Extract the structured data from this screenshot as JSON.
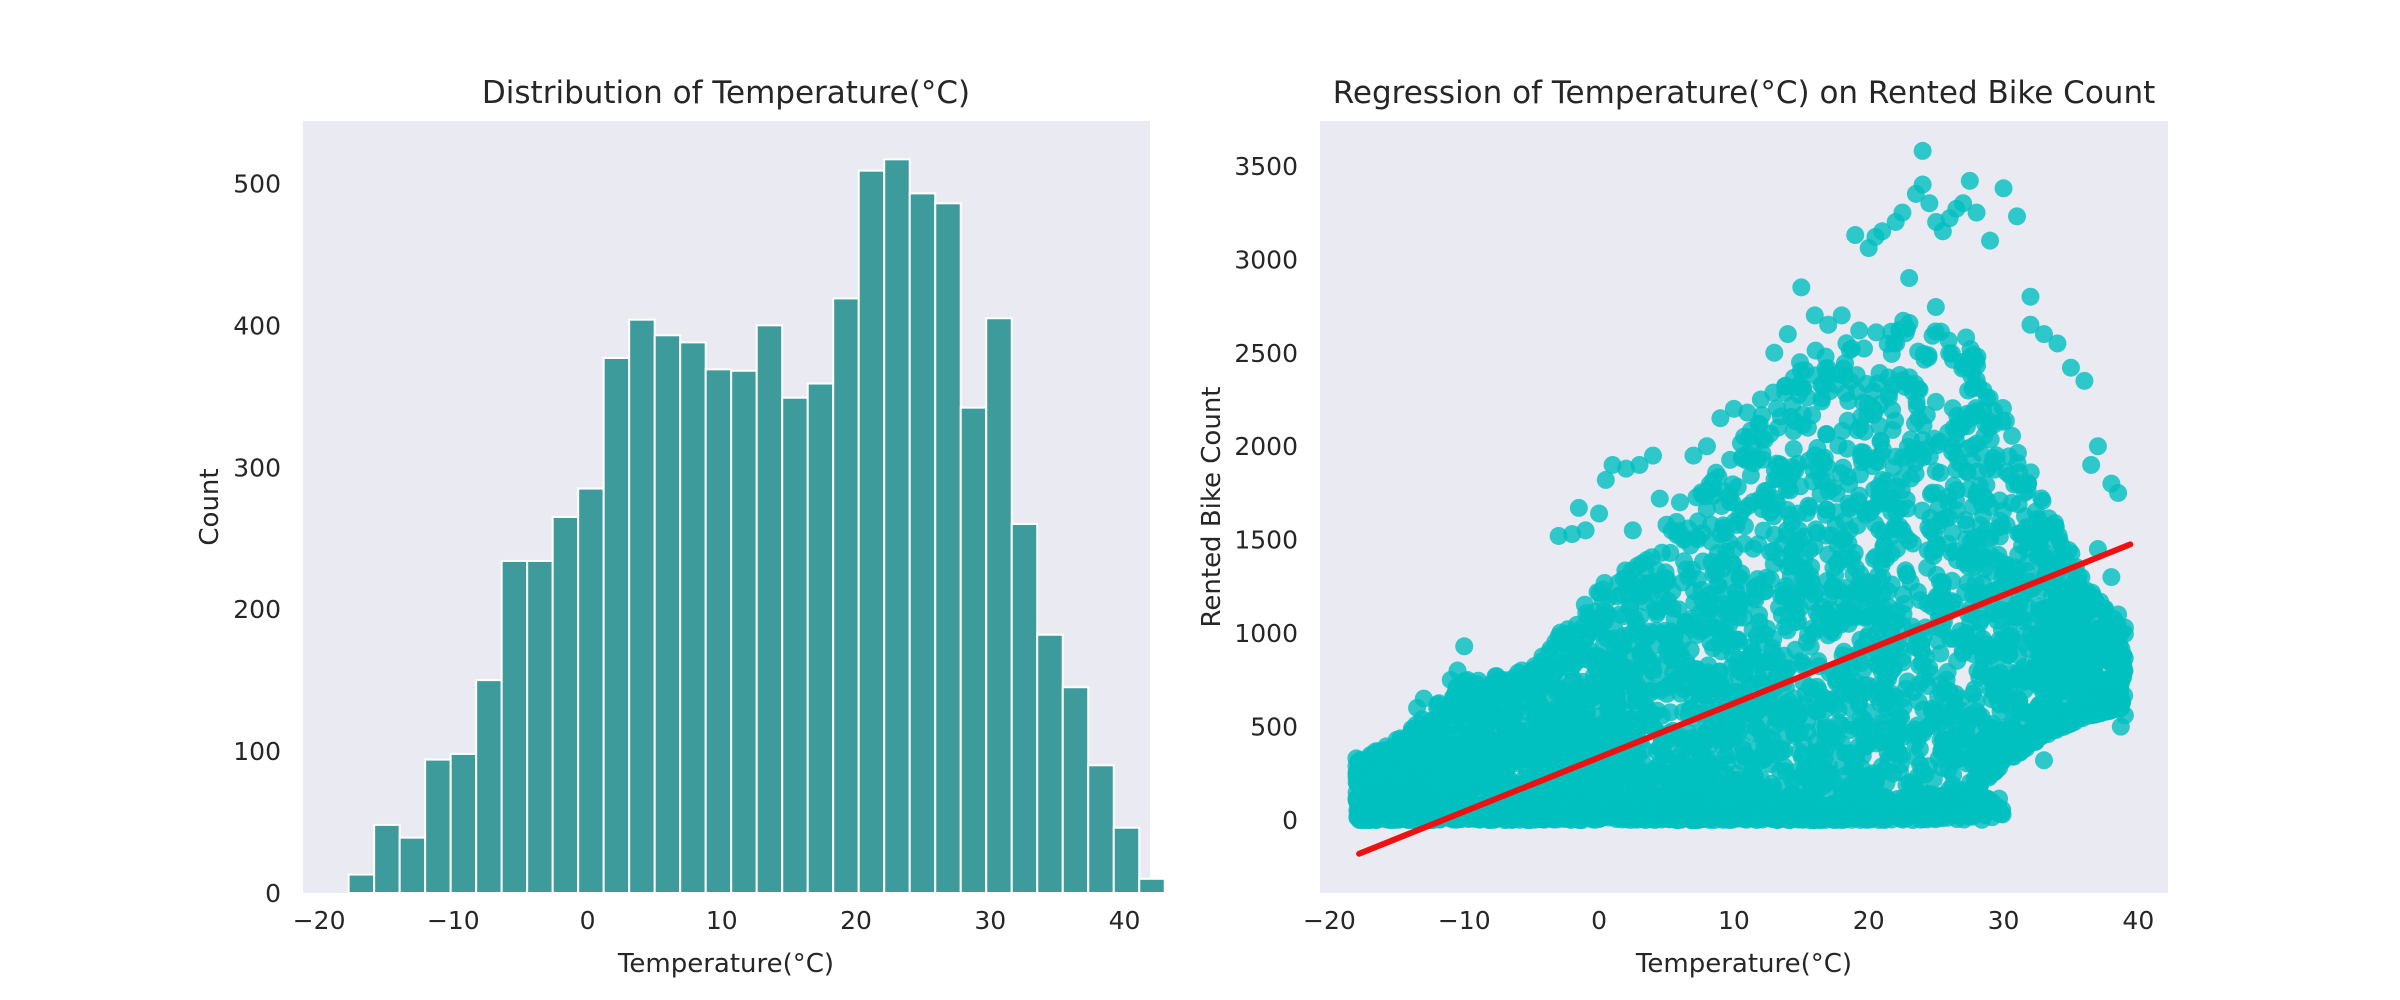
{
  "chart_data": [
    {
      "type": "bar",
      "title": "Distribution of Temperature(°C)",
      "xlabel": "Temperature(°C)",
      "ylabel": "Count",
      "xlim": [
        -21.2,
        41.9
      ],
      "ylim": [
        0,
        544
      ],
      "xticks": [
        -20,
        -10,
        0,
        10,
        20,
        30,
        40
      ],
      "yticks": [
        0,
        100,
        200,
        300,
        400,
        500
      ],
      "grid": false,
      "bar_color": "#3d9b9b",
      "bin_start": -17.8,
      "bin_width": 1.9,
      "values": [
        13,
        48,
        39,
        94,
        98,
        150,
        234,
        234,
        265,
        285,
        377,
        404,
        393,
        388,
        369,
        368,
        400,
        349,
        359,
        419,
        509,
        517,
        493,
        486,
        342,
        405,
        260,
        182,
        145,
        90,
        46,
        10
      ]
    },
    {
      "type": "scatter",
      "title": "Regression of Temperature(°C) on Rented Bike Count",
      "xlabel": "Temperature(°C)",
      "ylabel": "Rented Bike Count",
      "xlim": [
        -20.7,
        42.2
      ],
      "ylim": [
        -390,
        3740
      ],
      "xticks": [
        -20,
        -10,
        0,
        10,
        20,
        30,
        40
      ],
      "yticks": [
        0,
        500,
        1000,
        1500,
        2000,
        2500,
        3000,
        3500
      ],
      "grid": false,
      "point_color": "#00bfbf",
      "line_color": "#ee1111",
      "regression_line": {
        "x": [
          -17.8,
          39.4
        ],
        "y": [
          -180,
          1475
        ]
      },
      "envelope": {
        "x": [
          -18,
          -15,
          -10,
          -5,
          0,
          5,
          10,
          15,
          20,
          22,
          25,
          27,
          30,
          33,
          36,
          39
        ],
        "upper": [
          330,
          420,
          750,
          820,
          1250,
          1550,
          2000,
          2500,
          2650,
          2700,
          2750,
          2700,
          2200,
          1700,
          1300,
          1000
        ],
        "lower": [
          0,
          0,
          0,
          0,
          0,
          0,
          0,
          0,
          0,
          0,
          0,
          100,
          300,
          450,
          550,
          600
        ]
      },
      "outliers": [
        [
          -18,
          330
        ],
        [
          -17.5,
          150
        ],
        [
          -16,
          370
        ],
        [
          -15,
          430
        ],
        [
          -13.5,
          600
        ],
        [
          -13,
          650
        ],
        [
          -12,
          620
        ],
        [
          -11,
          750
        ],
        [
          -10.5,
          800
        ],
        [
          -10,
          930
        ],
        [
          -9,
          700
        ],
        [
          -8,
          650
        ],
        [
          -7,
          730
        ],
        [
          -5,
          800
        ],
        [
          -4,
          780
        ],
        [
          -3,
          1520
        ],
        [
          -2,
          1530
        ],
        [
          -1.5,
          1670
        ],
        [
          -1,
          1550
        ],
        [
          0,
          1640
        ],
        [
          0.5,
          1820
        ],
        [
          1,
          1900
        ],
        [
          2,
          1880
        ],
        [
          2.5,
          1550
        ],
        [
          3,
          1900
        ],
        [
          4,
          1950
        ],
        [
          4.5,
          1720
        ],
        [
          5,
          1580
        ],
        [
          6,
          1700
        ],
        [
          7,
          1950
        ],
        [
          8,
          2000
        ],
        [
          9,
          2150
        ],
        [
          10,
          2200
        ],
        [
          11,
          2180
        ],
        [
          12,
          2250
        ],
        [
          13,
          2500
        ],
        [
          14,
          2600
        ],
        [
          15,
          2850
        ],
        [
          16,
          2700
        ],
        [
          17,
          2650
        ],
        [
          18,
          2700
        ],
        [
          19,
          3130
        ],
        [
          20,
          3060
        ],
        [
          20.5,
          3120
        ],
        [
          21,
          3150
        ],
        [
          22,
          3200
        ],
        [
          22.5,
          3250
        ],
        [
          23,
          2900
        ],
        [
          23.5,
          3350
        ],
        [
          24,
          3400
        ],
        [
          24,
          3580
        ],
        [
          24.5,
          3300
        ],
        [
          25,
          3200
        ],
        [
          25.5,
          3150
        ],
        [
          26,
          3220
        ],
        [
          26.5,
          3270
        ],
        [
          27,
          3300
        ],
        [
          27.5,
          3420
        ],
        [
          28,
          3250
        ],
        [
          29,
          3100
        ],
        [
          30,
          3380
        ],
        [
          31,
          3230
        ],
        [
          32,
          2800
        ],
        [
          32,
          2650
        ],
        [
          33,
          2600
        ],
        [
          34,
          2550
        ],
        [
          35,
          2420
        ],
        [
          36,
          2350
        ],
        [
          36.5,
          1900
        ],
        [
          37,
          2000
        ],
        [
          38,
          1800
        ],
        [
          38.5,
          1750
        ],
        [
          37,
          1450
        ],
        [
          38,
          1300
        ],
        [
          38.5,
          1100
        ],
        [
          39,
          1030
        ],
        [
          39,
          560
        ],
        [
          38.7,
          500
        ],
        [
          33,
          320
        ]
      ]
    }
  ]
}
